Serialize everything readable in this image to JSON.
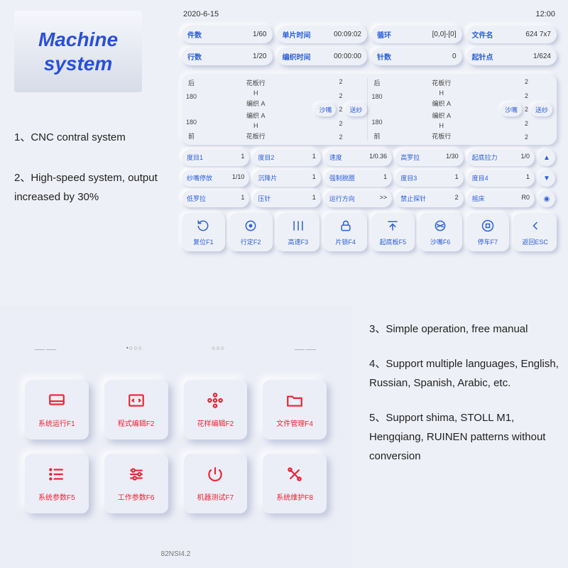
{
  "title": "Machine system",
  "features_left": [
    "1、CNC  contral system",
    "2、High-speed system, output increased by 30%"
  ],
  "features_right": [
    "3、Simple operation, free manual",
    "4、Support multiple languages, English, Russian, Spanish, Arabic, etc.",
    "5、Support shima, STOLL M1, Hengqiang, RUINEN  patterns without conversion"
  ],
  "panelA": {
    "date": "2020-6-15",
    "time": "12:00",
    "row1": [
      {
        "lab": "件数",
        "val": "1/60"
      },
      {
        "lab": "单片时间",
        "val": "00:09:02"
      },
      {
        "lab": "循环",
        "val": "[0,0]-[0]"
      },
      {
        "lab": "文件名",
        "val": "624  7x7"
      }
    ],
    "row2": [
      {
        "lab": "行数",
        "val": "1/20"
      },
      {
        "lab": "编织时间",
        "val": "00:00:00"
      },
      {
        "lab": "针数",
        "val": "0"
      },
      {
        "lab": "起针点",
        "val": "1/624"
      }
    ],
    "knit": {
      "rear": "后",
      "front": "前",
      "v180": "180",
      "huaban": "花板行",
      "bianzhi": "编织",
      "h": "H",
      "a": "A",
      "two": "2",
      "btn1": "沙嘴",
      "btn2": "送纱"
    },
    "params": [
      [
        {
          "lab": "度目1",
          "val": "1"
        },
        {
          "lab": "度目2",
          "val": "1"
        },
        {
          "lab": "速度",
          "val": "1/0.36"
        },
        {
          "lab": "高罗拉",
          "val": "1/30"
        },
        {
          "lab": "起底拉力",
          "val": "1/0"
        }
      ],
      [
        {
          "lab": "纱嘴停放",
          "val": "1/10"
        },
        {
          "lab": "沉降片",
          "val": "1"
        },
        {
          "lab": "强制脱圈",
          "val": "1"
        },
        {
          "lab": "度目3",
          "val": "1"
        },
        {
          "lab": "度目4",
          "val": "1"
        }
      ],
      [
        {
          "lab": "低罗拉",
          "val": "1"
        },
        {
          "lab": "压针",
          "val": "1"
        },
        {
          "lab": "运行方向",
          "val": ">>"
        },
        {
          "lab": "禁止探针",
          "val": "2"
        },
        {
          "lab": "摇床",
          "val": "R0"
        }
      ]
    ],
    "side_icons": [
      "▲",
      "▼",
      "◉"
    ],
    "fkeys": [
      {
        "lab": "复位F1",
        "icon": "reset"
      },
      {
        "lab": "行定F2",
        "icon": "target"
      },
      {
        "lab": "高速F3",
        "icon": "speed"
      },
      {
        "lab": "片锁F4",
        "icon": "lock"
      },
      {
        "lab": "起底板F5",
        "icon": "up"
      },
      {
        "lab": "沙嘴F6",
        "icon": "yarn"
      },
      {
        "lab": "停车F7",
        "icon": "stop"
      },
      {
        "lab": "返回ESC",
        "icon": "back"
      }
    ]
  },
  "panelB": {
    "version": "82NSI4.2",
    "decor": [
      "⸺⸺",
      "•○○○",
      "○○○",
      "⸺⸺"
    ],
    "menu": [
      {
        "lab": "系统运行F1",
        "icon": "monitor"
      },
      {
        "lab": "程式编辑F2",
        "icon": "code"
      },
      {
        "lab": "花样编辑F2",
        "icon": "pattern"
      },
      {
        "lab": "文件管理F4",
        "icon": "folder"
      },
      {
        "lab": "系统参数F5",
        "icon": "list"
      },
      {
        "lab": "工作参数F6",
        "icon": "sliders"
      },
      {
        "lab": "机器测试F7",
        "icon": "power"
      },
      {
        "lab": "系统维护F8",
        "icon": "tools"
      }
    ]
  }
}
